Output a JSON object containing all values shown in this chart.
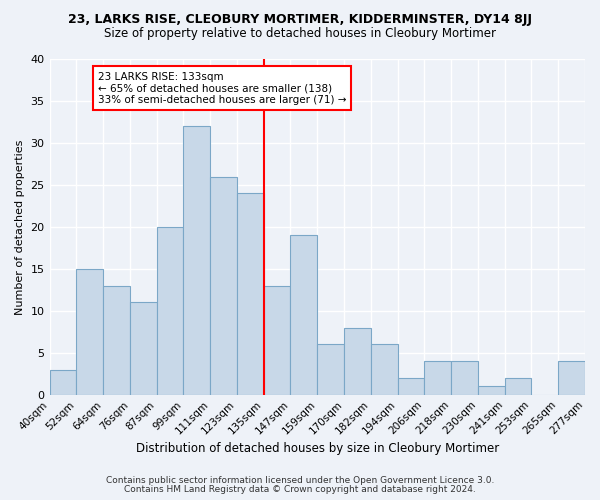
{
  "title1": "23, LARKS RISE, CLEOBURY MORTIMER, KIDDERMINSTER, DY14 8JJ",
  "title2": "Size of property relative to detached houses in Cleobury Mortimer",
  "xlabel": "Distribution of detached houses by size in Cleobury Mortimer",
  "ylabel": "Number of detached properties",
  "footer1": "Contains HM Land Registry data © Crown copyright and database right 2024.",
  "footer2": "Contains public sector information licensed under the Open Government Licence 3.0.",
  "bin_labels": [
    "40sqm",
    "52sqm",
    "64sqm",
    "76sqm",
    "87sqm",
    "99sqm",
    "111sqm",
    "123sqm",
    "135sqm",
    "147sqm",
    "159sqm",
    "170sqm",
    "182sqm",
    "194sqm",
    "206sqm",
    "218sqm",
    "230sqm",
    "241sqm",
    "253sqm",
    "265sqm",
    "277sqm"
  ],
  "bar_values": [
    3,
    15,
    13,
    11,
    20,
    32,
    26,
    24,
    13,
    19,
    6,
    8,
    6,
    2,
    4,
    4,
    1,
    2,
    0,
    4
  ],
  "bar_color": "#c8d8e8",
  "bar_edge_color": "#7ba7c7",
  "vline_color": "red",
  "annotation_text": "23 LARKS RISE: 133sqm\n← 65% of detached houses are smaller (138)\n33% of semi-detached houses are larger (71) →",
  "annotation_box_color": "white",
  "annotation_box_edge": "red",
  "background_color": "#eef2f8",
  "grid_color": "white",
  "ylim": [
    0,
    40
  ],
  "yticks": [
    0,
    5,
    10,
    15,
    20,
    25,
    30,
    35,
    40
  ]
}
